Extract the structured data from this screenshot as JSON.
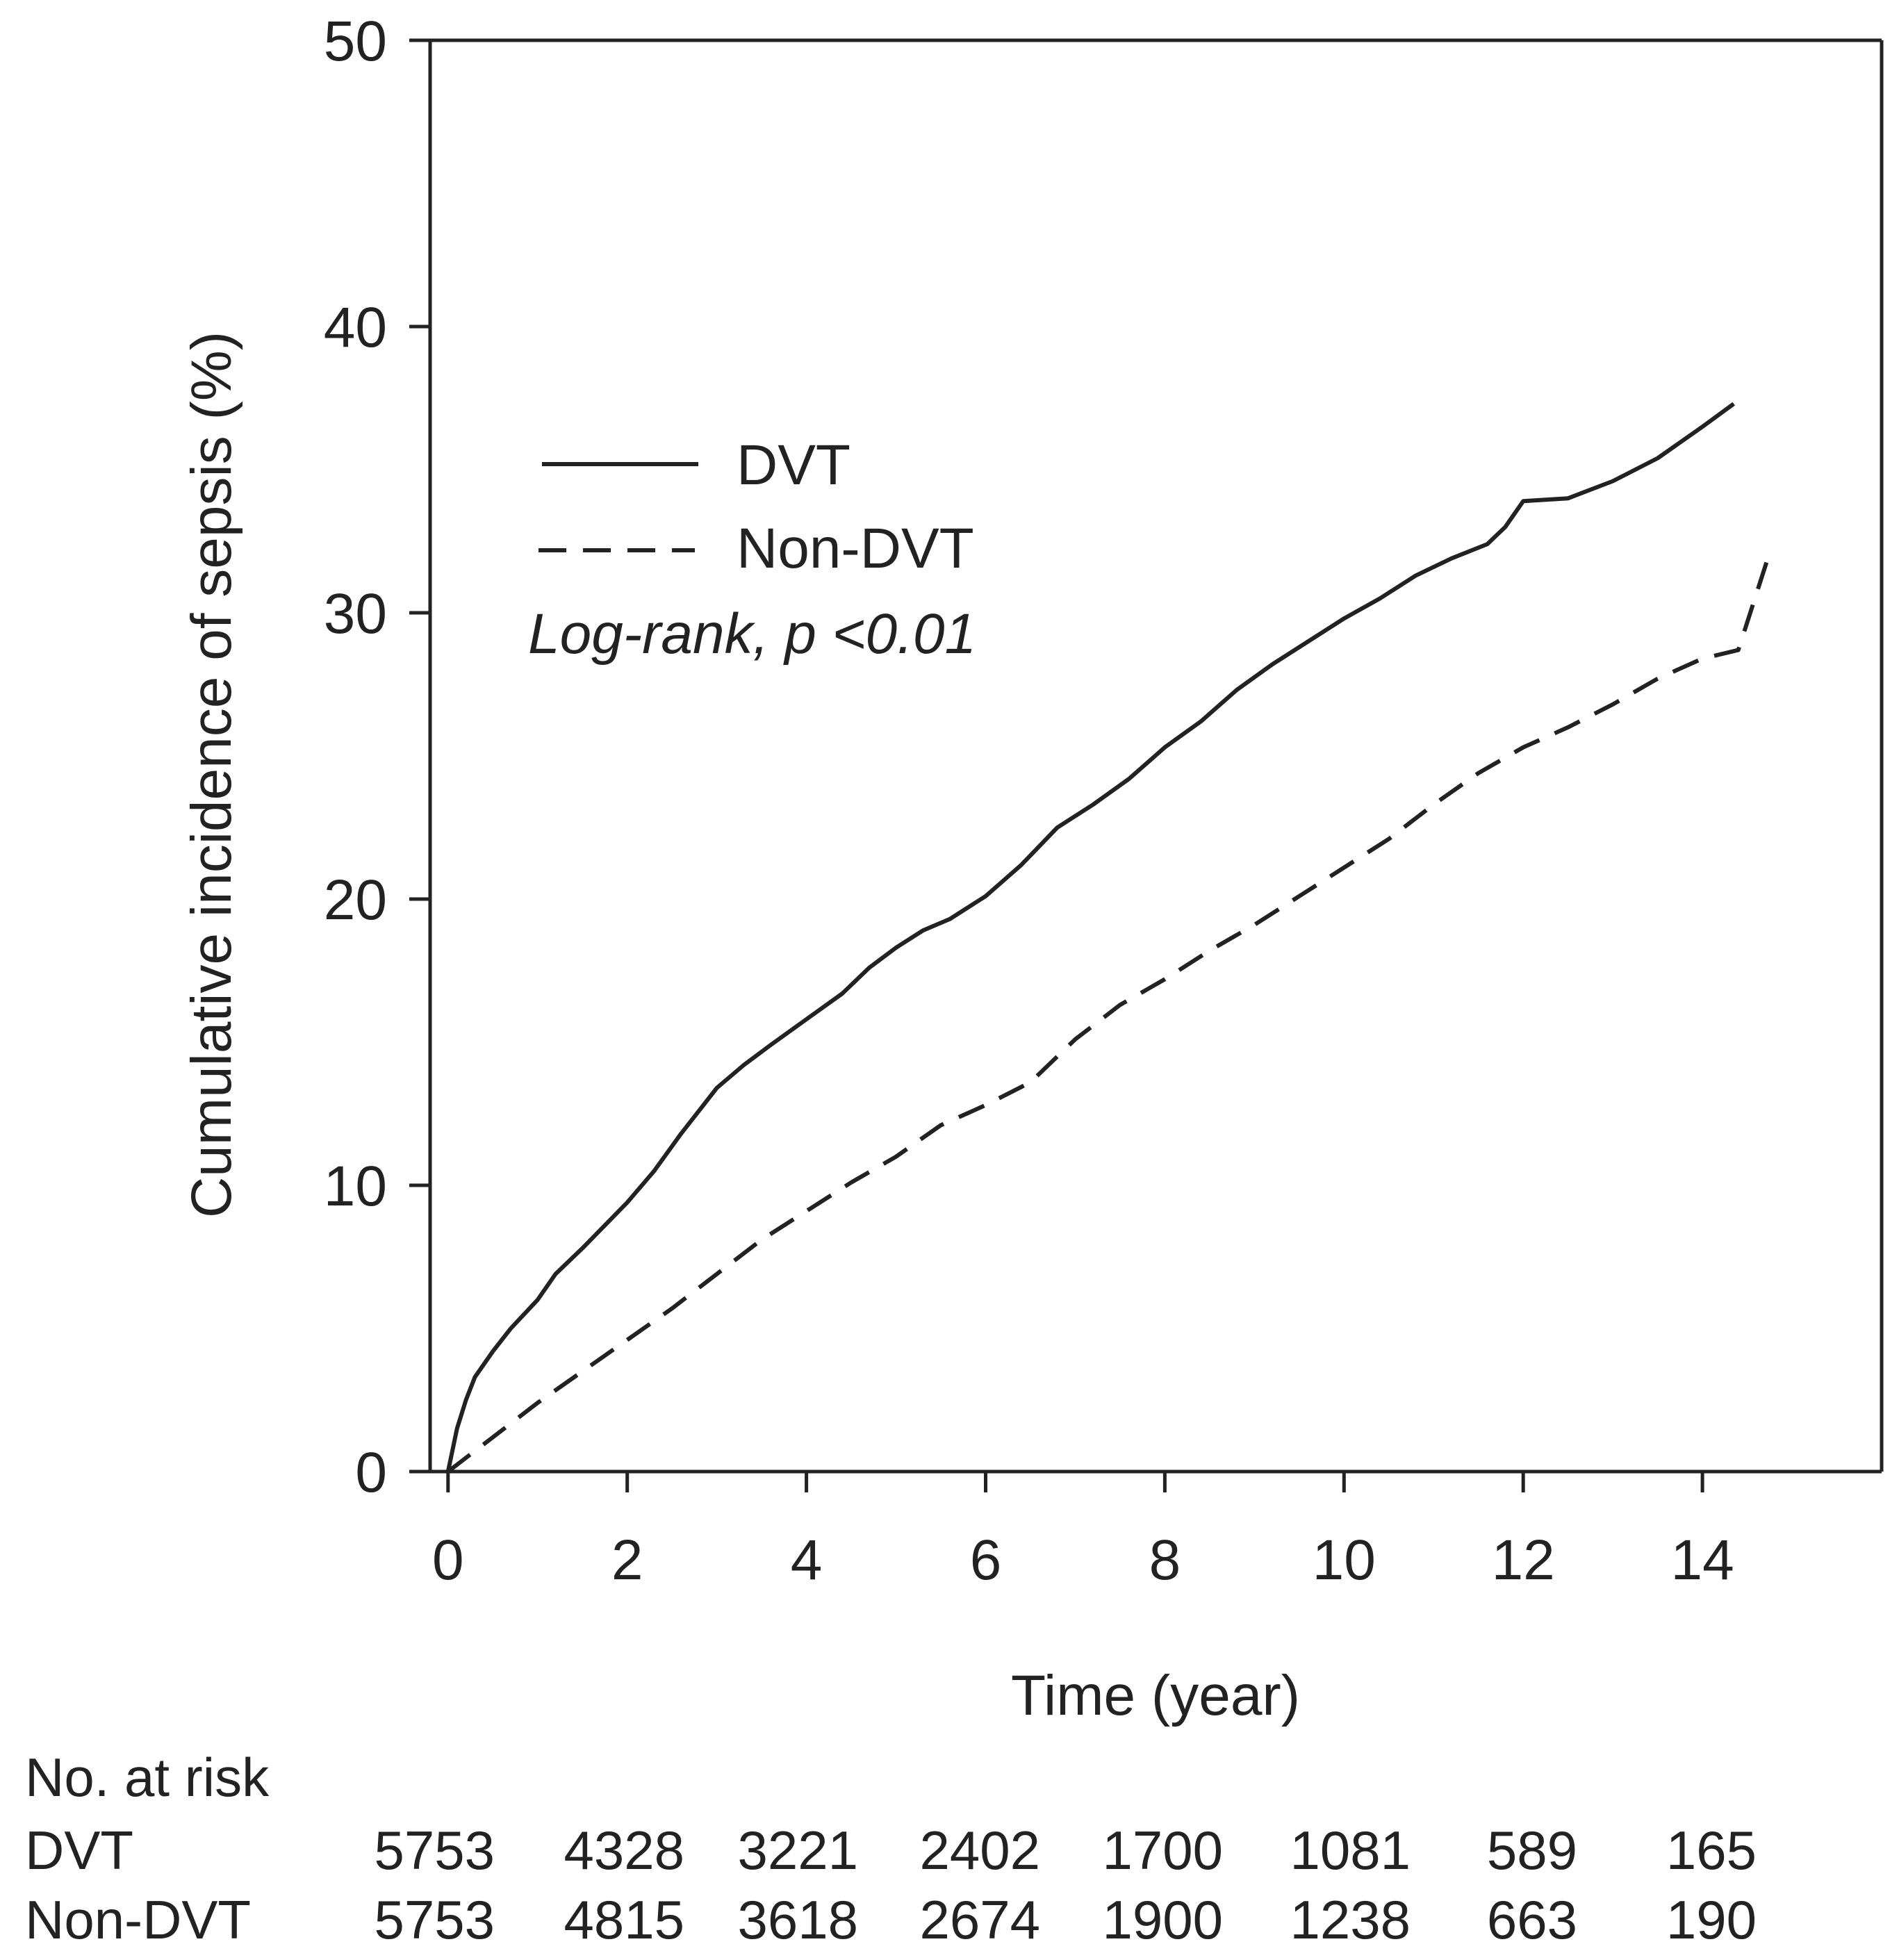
{
  "chart_data": {
    "type": "line",
    "title": "",
    "xlabel": "Time (year)",
    "ylabel": "Cumulative incidence of sepsis (%)",
    "xlim": [
      -0.2,
      16
    ],
    "ylim": [
      0,
      50
    ],
    "x_ticks": [
      0,
      2,
      4,
      6,
      8,
      10,
      12,
      14
    ],
    "y_ticks": [
      0,
      10,
      20,
      30,
      40,
      50
    ],
    "legend_position": "upper-left",
    "annotation": "Log-rank, p <0.01",
    "series": [
      {
        "name": "DVT",
        "style": "solid",
        "x": [
          0,
          0.1,
          0.2,
          0.3,
          0.5,
          0.7,
          1.0,
          1.2,
          1.5,
          2.0,
          2.3,
          2.6,
          3.0,
          3.3,
          3.6,
          4.0,
          4.4,
          4.7,
          5.0,
          5.3,
          5.6,
          6.0,
          6.4,
          6.8,
          7.2,
          7.6,
          8.0,
          8.4,
          8.8,
          9.2,
          9.6,
          10.0,
          10.4,
          10.8,
          11.2,
          11.6,
          11.8,
          12.0,
          12.5,
          13.0,
          13.5,
          14.0,
          14.35
        ],
        "y": [
          0,
          1.5,
          2.5,
          3.3,
          4.2,
          5.0,
          6.0,
          6.9,
          7.8,
          9.4,
          10.5,
          11.8,
          13.4,
          14.2,
          14.9,
          15.8,
          16.7,
          17.6,
          18.3,
          18.9,
          19.3,
          20.1,
          21.2,
          22.5,
          23.3,
          24.2,
          25.3,
          26.2,
          27.3,
          28.2,
          29.0,
          29.8,
          30.5,
          31.3,
          31.9,
          32.4,
          33.0,
          33.9,
          34.0,
          34.6,
          35.4,
          36.5,
          37.3
        ]
      },
      {
        "name": "Non-DVT",
        "style": "dashed",
        "x": [
          0,
          0.5,
          1.0,
          1.5,
          2.0,
          2.5,
          3.0,
          3.5,
          4.0,
          4.5,
          5.0,
          5.5,
          6.0,
          6.5,
          7.0,
          7.5,
          8.0,
          8.5,
          9.0,
          9.5,
          10.0,
          10.5,
          11.0,
          11.5,
          12.0,
          12.5,
          13.0,
          13.5,
          14.0,
          14.4,
          14.75
        ],
        "y": [
          0,
          1.2,
          2.4,
          3.5,
          4.6,
          5.7,
          6.9,
          8.1,
          9.1,
          10.1,
          11.0,
          12.1,
          12.8,
          13.6,
          15.1,
          16.3,
          17.2,
          18.2,
          19.1,
          20.1,
          21.1,
          22.1,
          23.3,
          24.4,
          25.3,
          26.0,
          26.8,
          27.7,
          28.4,
          28.7,
          32.1
        ]
      }
    ],
    "risk_table": {
      "title": "No. at risk",
      "rows": [
        {
          "label": "DVT",
          "values": [
            "5753",
            "4328",
            "3221",
            "2402",
            "1700",
            "1081",
            "589",
            "165"
          ]
        },
        {
          "label": "Non-DVT",
          "values": [
            "5753",
            "4815",
            "3618",
            "2674",
            "1900",
            "1238",
            "663",
            "190"
          ]
        }
      ]
    }
  }
}
